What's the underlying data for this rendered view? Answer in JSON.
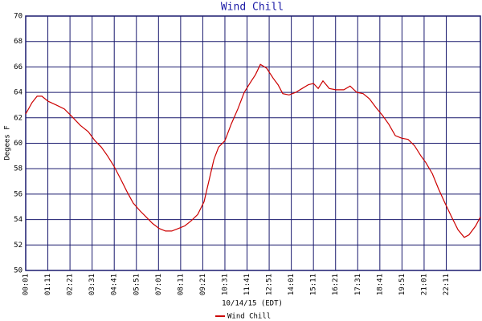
{
  "chart_data": {
    "type": "line",
    "title": "Wind Chill",
    "ylabel": "Degees F",
    "xlabel": "10/14/15 (EDT)",
    "x": [
      "00:01",
      "00:21",
      "00:37",
      "00:52",
      "01:12",
      "01:38",
      "02:03",
      "02:23",
      "02:54",
      "03:19",
      "03:40",
      "04:00",
      "04:20",
      "04:40",
      "05:01",
      "05:21",
      "05:41",
      "06:02",
      "06:22",
      "06:42",
      "07:03",
      "07:23",
      "07:43",
      "08:04",
      "08:24",
      "08:44",
      "09:05",
      "09:25",
      "09:40",
      "09:56",
      "10:11",
      "10:31",
      "10:51",
      "11:12",
      "11:32",
      "11:52",
      "12:08",
      "12:23",
      "12:43",
      "13:04",
      "13:19",
      "13:34",
      "13:54",
      "14:15",
      "14:35",
      "14:55",
      "15:11",
      "15:26",
      "15:41",
      "16:01",
      "16:22",
      "16:47",
      "17:07",
      "17:28",
      "17:48",
      "18:08",
      "18:29",
      "18:49",
      "19:09",
      "19:30",
      "19:50",
      "20:10",
      "20:31",
      "20:51",
      "21:06",
      "21:27",
      "21:47",
      "22:07",
      "22:28",
      "22:48",
      "23:08",
      "23:23",
      "23:44",
      "23:59"
    ],
    "series": [
      {
        "name": "Wind Chill",
        "color": "#cc0000",
        "values": [
          62.3,
          63.2,
          63.7,
          63.7,
          63.3,
          63.0,
          62.7,
          62.2,
          61.4,
          60.9,
          60.2,
          59.7,
          59.0,
          58.2,
          57.2,
          56.2,
          55.3,
          54.7,
          54.2,
          53.7,
          53.3,
          53.1,
          53.1,
          53.3,
          53.5,
          53.9,
          54.4,
          55.4,
          57.0,
          58.7,
          59.7,
          60.2,
          61.5,
          62.7,
          64.0,
          64.8,
          65.4,
          66.2,
          65.9,
          65.1,
          64.6,
          63.9,
          63.8,
          64.0,
          64.3,
          64.6,
          64.7,
          64.3,
          64.9,
          64.3,
          64.2,
          64.2,
          64.5,
          64.0,
          63.9,
          63.5,
          62.8,
          62.2,
          61.5,
          60.6,
          60.4,
          60.3,
          59.8,
          59.0,
          58.5,
          57.6,
          56.4,
          55.3,
          54.2,
          53.2,
          52.6,
          52.8,
          53.5,
          54.2
        ]
      }
    ],
    "xlim": [
      "00:01",
      "23:59"
    ],
    "xticks": [
      "00:01",
      "01:11",
      "02:21",
      "03:31",
      "04:41",
      "05:51",
      "07:01",
      "08:11",
      "09:21",
      "10:31",
      "11:41",
      "12:51",
      "14:01",
      "15:11",
      "16:21",
      "17:31",
      "18:41",
      "19:51",
      "21:01",
      "22:11"
    ],
    "ylim": [
      50,
      70
    ],
    "yticks": [
      50,
      52,
      54,
      56,
      58,
      60,
      62,
      64,
      66,
      68,
      70
    ],
    "grid": true,
    "legend": "bottom"
  }
}
